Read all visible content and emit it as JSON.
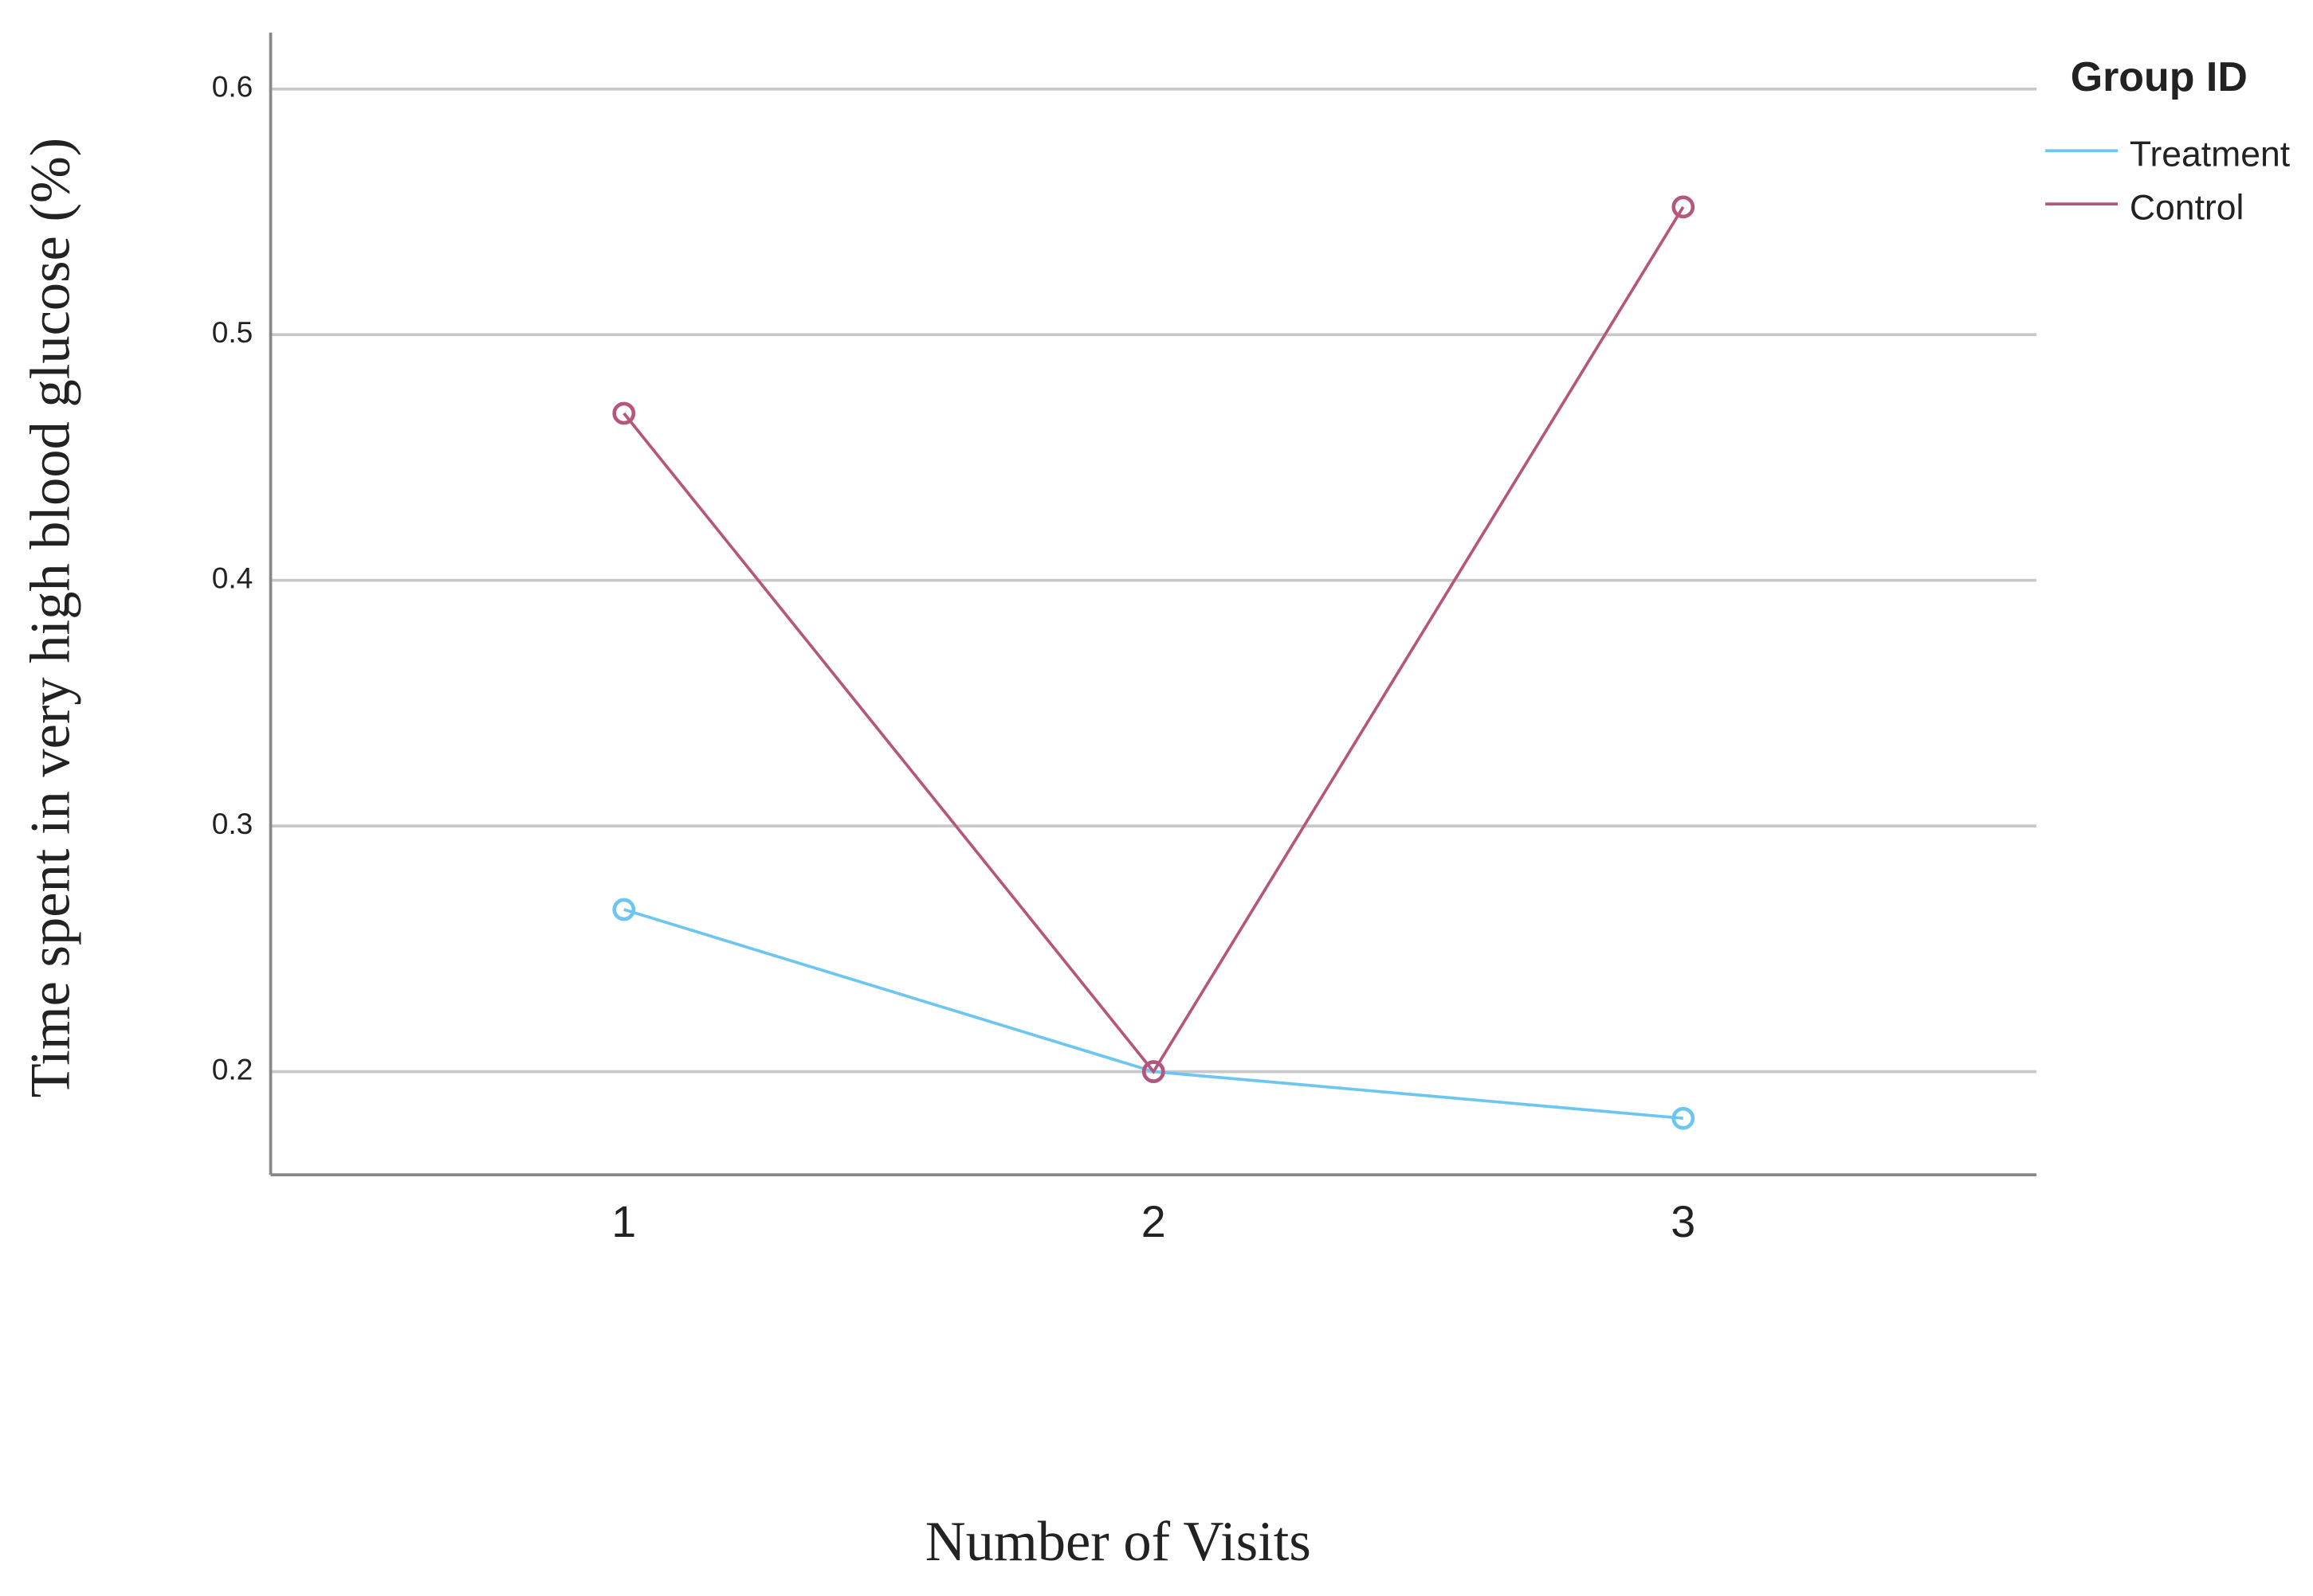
{
  "chart_data": {
    "type": "line",
    "x_label": "Number of Visits",
    "y_label": "Time spent in very high blood glucose (%)",
    "categories": [
      "1",
      "2",
      "3"
    ],
    "series": [
      {
        "name": "Treatment",
        "color": "#6cc6f0",
        "values": [
          0.266,
          0.2,
          0.181
        ]
      },
      {
        "name": "Control",
        "color": "#b5577d",
        "values": [
          0.468,
          0.2,
          0.552
        ]
      }
    ],
    "ylim": [
      0.158,
      0.623
    ],
    "yticks": [
      0.2,
      0.3,
      0.4,
      0.5,
      0.6
    ],
    "grid": true,
    "legend_title": "Group ID",
    "legend_position": "right"
  }
}
